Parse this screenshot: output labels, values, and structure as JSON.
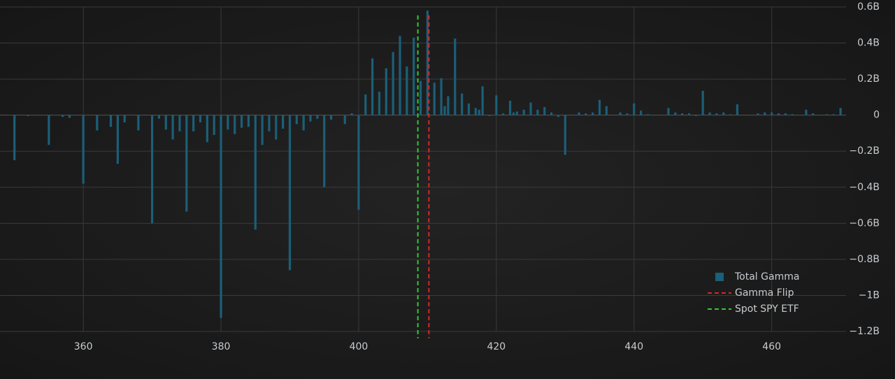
{
  "chart_data": {
    "type": "bar",
    "x": [
      350,
      352,
      355,
      357,
      358,
      360,
      362,
      364,
      365,
      366,
      368,
      370,
      371,
      372,
      373,
      374,
      375,
      376,
      377,
      378,
      379,
      380,
      381,
      382,
      383,
      384,
      385,
      386,
      387,
      388,
      389,
      390,
      391,
      392,
      393,
      394,
      395,
      396,
      398,
      399,
      400,
      401,
      402,
      403,
      404,
      405,
      406,
      407,
      408,
      409,
      410,
      411,
      412,
      412.5,
      413,
      414,
      415,
      416,
      417,
      417.5,
      418,
      419,
      420,
      421,
      422,
      422.5,
      423,
      424,
      425,
      426,
      427,
      428,
      429,
      430,
      432,
      433,
      434,
      435,
      436,
      438,
      439,
      440,
      441,
      442,
      445,
      446,
      447,
      448,
      449,
      450,
      451,
      452,
      453,
      454,
      455,
      458,
      459,
      460,
      461,
      462,
      463,
      465,
      466,
      468,
      469,
      470
    ],
    "series": [
      {
        "name": "Total Gamma",
        "color": "#1b5f78",
        "values": [
          -0.25,
          -0.005,
          -0.165,
          -0.01,
          -0.015,
          -0.38,
          -0.085,
          -0.065,
          -0.27,
          -0.04,
          -0.085,
          -0.6,
          -0.02,
          -0.08,
          -0.135,
          -0.09,
          -0.535,
          -0.09,
          -0.04,
          -0.15,
          -0.11,
          -1.125,
          -0.08,
          -0.105,
          -0.07,
          -0.065,
          -0.635,
          -0.165,
          -0.09,
          -0.135,
          -0.075,
          -0.86,
          -0.05,
          -0.085,
          -0.035,
          -0.02,
          -0.4,
          -0.025,
          -0.05,
          0.01,
          -0.525,
          0.115,
          0.315,
          0.13,
          0.26,
          0.35,
          0.44,
          0.27,
          0.43,
          0.19,
          0.58,
          0.18,
          0.205,
          0.05,
          0.105,
          0.425,
          0.12,
          0.065,
          0.04,
          0.03,
          0.16,
          -0.005,
          0.11,
          0.01,
          0.08,
          0.015,
          0.02,
          0.03,
          0.07,
          0.03,
          0.045,
          0.015,
          -0.01,
          -0.22,
          0.015,
          0.01,
          0.015,
          0.085,
          0.05,
          0.015,
          0.01,
          0.065,
          0.025,
          0.005,
          0.04,
          0.015,
          0.01,
          0.01,
          -0.005,
          0.135,
          0.015,
          0.01,
          0.015,
          0.005,
          0.06,
          0.01,
          0.015,
          0.015,
          0.01,
          0.01,
          0.005,
          0.03,
          0.01,
          0.005,
          0.005,
          0.04
        ]
      }
    ],
    "vlines": [
      {
        "name": "Gamma Flip",
        "color": "#d62728",
        "x": 410.2
      },
      {
        "name": "Spot SPY ETF",
        "color": "#33c733",
        "x": 408.6
      }
    ],
    "xlim": [
      347.9,
      470.8
    ],
    "xticks": [
      360,
      380,
      400,
      420,
      440,
      460
    ],
    "ylim": [
      -1.2,
      0.6
    ],
    "yticks": [
      {
        "value": 0.6,
        "label": "0.6B"
      },
      {
        "value": 0.4,
        "label": "0.4B"
      },
      {
        "value": 0.2,
        "label": "0.2B"
      },
      0,
      {
        "value": -0.2,
        "label": "−0.2B"
      },
      {
        "value": -0.4,
        "label": "−0.4B"
      },
      {
        "value": -0.6,
        "label": "−0.6B"
      },
      {
        "value": -0.8,
        "label": "−0.8B"
      },
      {
        "value": -1,
        "label": "−1B"
      },
      {
        "value": -1.2,
        "label": "−1.2B"
      }
    ],
    "grid": true,
    "legend": "bottom-right"
  }
}
